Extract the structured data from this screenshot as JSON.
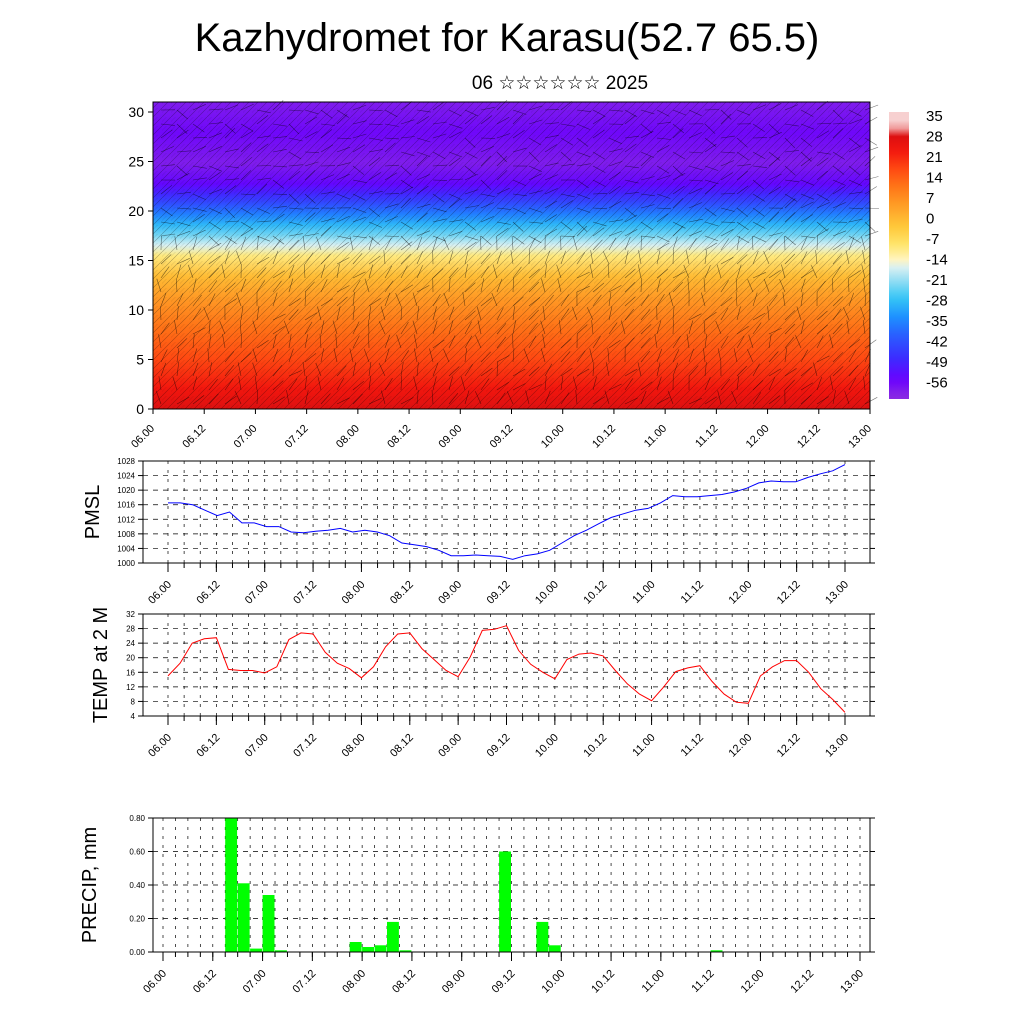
{
  "header": {
    "title": "Kazhydromet for Karasu(52.7 65.5)",
    "subtitle": "06 ☆☆☆☆☆☆ 2025"
  },
  "time_labels": [
    "06.00",
    "06.12",
    "07.00",
    "07.12",
    "08.00",
    "08.12",
    "09.00",
    "09.12",
    "10.00",
    "10.12",
    "11.00",
    "11.12",
    "12.00",
    "12.12",
    "13.00"
  ],
  "colors": {
    "pmsl_line": "#0000ff",
    "temp_line": "#ff0000",
    "precip_bar": "#00ff00",
    "gridline": "#000000"
  },
  "chart_data": [
    {
      "type": "heatmap",
      "name": "cross-section",
      "ylim": [
        0,
        30
      ],
      "y_ticks": [
        "0",
        "5",
        "10",
        "15",
        "20",
        "25",
        "30"
      ],
      "colorbar_labels": [
        "35",
        "28",
        "21",
        "14",
        "7",
        "0",
        "-7",
        "-14",
        "-21",
        "-28",
        "-35",
        "-42",
        "-49",
        "-56"
      ],
      "overlay": "wind barbs",
      "profile_levels_km": [
        0,
        2,
        5,
        8,
        11,
        13,
        15,
        16,
        17,
        18,
        19,
        20,
        21,
        22,
        24,
        27,
        30
      ],
      "profile_temps": [
        33,
        28,
        21,
        15,
        8,
        2,
        -8,
        -15,
        -22,
        -28,
        -35,
        -42,
        -49,
        -55,
        -60,
        -57,
        -60
      ]
    },
    {
      "type": "line",
      "name": "pmsl",
      "ylabel": "PMSL",
      "ylim": [
        1000,
        1028
      ],
      "y_ticks": [
        "1000",
        "1004",
        "1008",
        "1012",
        "1016",
        "1020",
        "1024",
        "1028"
      ],
      "series": [
        {
          "values": [
            1016.5,
            1016.5,
            1016,
            1014.5,
            1013,
            1014,
            1011,
            1011,
            1010,
            1010,
            1008.5,
            1008.3,
            1008.7,
            1009,
            1009.5,
            1008.5,
            1009,
            1008.5,
            1007.5,
            1005.5,
            1005,
            1004.5,
            1003.5,
            1002,
            1002,
            1002.2,
            1002,
            1001.8,
            1001,
            1002,
            1002.5,
            1003.5,
            1005.5,
            1007.5,
            1009,
            1010.8,
            1012.5,
            1013.5,
            1014.5,
            1015,
            1016.5,
            1018.5,
            1018.2,
            1018.2,
            1018.5,
            1018.8,
            1019.5,
            1020.5,
            1022,
            1022.5,
            1022.3,
            1022.3,
            1023.5,
            1024.5,
            1025.3,
            1027
          ]
        }
      ]
    },
    {
      "type": "line",
      "name": "temp-2m",
      "ylabel": "TEMP at 2 M",
      "ylim": [
        4,
        32
      ],
      "y_ticks": [
        "4",
        "8",
        "12",
        "16",
        "20",
        "24",
        "28",
        "32"
      ],
      "series": [
        {
          "values": [
            15,
            18.5,
            24,
            25.2,
            25.5,
            16.8,
            16.5,
            16.5,
            15.8,
            17.5,
            25,
            26.8,
            26.5,
            21.5,
            18.5,
            17,
            14.5,
            17.5,
            23,
            26.5,
            26.8,
            22.5,
            19.5,
            16.5,
            14.8,
            20.2,
            27.5,
            27.8,
            28.8,
            22,
            18.2,
            16,
            14.2,
            19.5,
            21,
            21.3,
            20.5,
            16.5,
            12.8,
            10,
            8.2,
            12,
            16.2,
            17.2,
            17.8,
            13.5,
            10,
            7.8,
            7.5,
            15,
            17.5,
            19.2,
            19.2,
            16,
            11.5,
            8.5,
            5
          ]
        }
      ]
    },
    {
      "type": "bar",
      "name": "precip",
      "ylabel": "PRECIP, mm",
      "ylim": [
        0,
        0.8
      ],
      "y_ticks": [
        "0.00",
        "0.20",
        "0.40",
        "0.60",
        "0.80"
      ],
      "x_range": [
        0,
        56
      ],
      "bars": [
        {
          "x": 5,
          "value": 0.8
        },
        {
          "x": 6,
          "value": 0.41
        },
        {
          "x": 7,
          "value": 0.02
        },
        {
          "x": 8,
          "value": 0.34
        },
        {
          "x": 9,
          "value": 0.01
        },
        {
          "x": 15,
          "value": 0.06
        },
        {
          "x": 16,
          "value": 0.03
        },
        {
          "x": 17,
          "value": 0.04
        },
        {
          "x": 18,
          "value": 0.18
        },
        {
          "x": 19,
          "value": 0.01
        },
        {
          "x": 27,
          "value": 0.6
        },
        {
          "x": 30,
          "value": 0.18
        },
        {
          "x": 31,
          "value": 0.04
        },
        {
          "x": 44,
          "value": 0.01
        }
      ]
    }
  ]
}
